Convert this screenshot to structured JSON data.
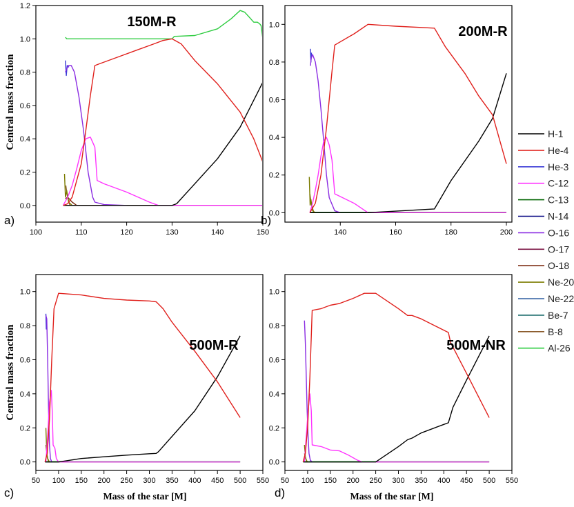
{
  "figure": {
    "y_axis_label": "Central mass fraction",
    "x_axis_label": "Mass of the star [M]"
  },
  "legend": [
    {
      "name": "H-1",
      "color": "#000000"
    },
    {
      "name": "He-4",
      "color": "#e0201c"
    },
    {
      "name": "He-3",
      "color": "#3b3bd6"
    },
    {
      "name": "C-12",
      "color": "#ff33ff"
    },
    {
      "name": "C-13",
      "color": "#006400"
    },
    {
      "name": "N-14",
      "color": "#000080"
    },
    {
      "name": "O-16",
      "color": "#8a2be2"
    },
    {
      "name": "O-17",
      "color": "#7a1040"
    },
    {
      "name": "O-18",
      "color": "#7b2a10"
    },
    {
      "name": "Ne-20",
      "color": "#7b7b00"
    },
    {
      "name": "Ne-22",
      "color": "#2f5fa0"
    },
    {
      "name": "Be-7",
      "color": "#1a6b6b"
    },
    {
      "name": "B-8",
      "color": "#8b5a2b"
    },
    {
      "name": "Al-26",
      "color": "#2ecc40"
    }
  ],
  "chart_data": [
    {
      "type": "line",
      "panel": "a)",
      "title": "150M-R",
      "xlim": [
        100,
        150
      ],
      "ylim": [
        -0.1,
        1.2
      ],
      "xticks": [
        "100",
        "110",
        "120",
        "130",
        "140",
        "150"
      ],
      "yticks": [
        "0.0",
        "0.2",
        "0.4",
        "0.6",
        "0.8",
        "1.0",
        "1.2"
      ],
      "series": [
        {
          "name": "H-1",
          "x": [
            106,
            130,
            131,
            136,
            140,
            145,
            150
          ],
          "y": [
            0,
            0,
            0.01,
            0.16,
            0.28,
            0.47,
            0.74
          ]
        },
        {
          "name": "He-4",
          "x": [
            106,
            107,
            108,
            110,
            111,
            112,
            113,
            114,
            118,
            122,
            126,
            128,
            130,
            132,
            135,
            140,
            145,
            148,
            150
          ],
          "y": [
            0,
            0.01,
            0.05,
            0.25,
            0.45,
            0.66,
            0.84,
            0.85,
            0.89,
            0.93,
            0.97,
            0.99,
            1.0,
            0.97,
            0.87,
            0.73,
            0.56,
            0.4,
            0.26
          ]
        },
        {
          "name": "O-16",
          "x": [
            106.5,
            106.8,
            107.2,
            107.8,
            108.5,
            109.5,
            110.5,
            111.5,
            112.5,
            113,
            115,
            120
          ],
          "y": [
            0.8,
            0.82,
            0.84,
            0.84,
            0.8,
            0.65,
            0.45,
            0.2,
            0.05,
            0.02,
            0.005,
            0
          ]
        },
        {
          "name": "He-3",
          "x": [
            106.5,
            106.7,
            106.9,
            107.3
          ],
          "y": [
            0.87,
            0.78,
            0.84,
            0.83
          ]
        },
        {
          "name": "C-12",
          "x": [
            106,
            107,
            108,
            109,
            110,
            111,
            112,
            113,
            113.5,
            115,
            120,
            125,
            127,
            150
          ],
          "y": [
            0,
            0.05,
            0.12,
            0.22,
            0.33,
            0.4,
            0.41,
            0.35,
            0.15,
            0.13,
            0.08,
            0.02,
            0,
            0
          ]
        },
        {
          "name": "Ne-20",
          "x": [
            106.3,
            106.5,
            106.8,
            107.2,
            108
          ],
          "y": [
            0.19,
            0.05,
            0.09,
            0.02,
            0
          ]
        },
        {
          "name": "B-8",
          "x": [
            106.6,
            106.9,
            107.5
          ],
          "y": [
            0.12,
            0.06,
            0
          ]
        },
        {
          "name": "O-18",
          "x": [
            106.5,
            107,
            108,
            109,
            150
          ],
          "y": [
            0.04,
            0.05,
            0.02,
            0,
            0
          ]
        },
        {
          "name": "C-13",
          "x": [
            106.5,
            150
          ],
          "y": [
            0,
            0
          ]
        },
        {
          "name": "Al-26",
          "x": [
            106.5,
            106.8,
            110,
            120,
            130,
            130.5,
            135,
            140,
            143,
            145,
            146,
            147,
            148,
            148.8,
            149.3,
            149.6,
            150
          ],
          "y": [
            1.01,
            1.0,
            1.0,
            1.0,
            1.0,
            1.015,
            1.02,
            1.06,
            1.12,
            1.17,
            1.16,
            1.13,
            1.1,
            1.1,
            1.09,
            1.08,
            1.0
          ]
        }
      ]
    },
    {
      "type": "line",
      "panel": "b)",
      "title": "200M-R",
      "xlim": [
        120,
        202
      ],
      "ylim": [
        -0.05,
        1.1
      ],
      "xticks": [
        "140",
        "160",
        "180",
        "200"
      ],
      "yticks": [
        "0.0",
        "0.2",
        "0.4",
        "0.6",
        "0.8",
        "1.0"
      ],
      "series": [
        {
          "name": "H-1",
          "x": [
            129,
            150,
            174,
            180,
            190,
            195,
            200
          ],
          "y": [
            0,
            0,
            0.02,
            0.17,
            0.38,
            0.5,
            0.74
          ]
        },
        {
          "name": "He-4",
          "x": [
            129,
            131,
            133,
            135,
            137,
            138,
            145,
            150,
            160,
            174,
            178,
            185,
            190,
            195,
            200
          ],
          "y": [
            0,
            0.05,
            0.2,
            0.45,
            0.75,
            0.89,
            0.95,
            1.0,
            0.99,
            0.98,
            0.88,
            0.74,
            0.62,
            0.52,
            0.26
          ]
        },
        {
          "name": "O-16",
          "x": [
            129.2,
            129.5,
            130,
            131,
            132,
            133,
            134,
            135,
            136,
            138,
            140
          ],
          "y": [
            0.78,
            0.82,
            0.84,
            0.8,
            0.7,
            0.55,
            0.38,
            0.2,
            0.08,
            0.01,
            0
          ]
        },
        {
          "name": "He-3",
          "x": [
            129.2,
            129.4,
            129.6
          ],
          "y": [
            0.87,
            0.8,
            0.85
          ]
        },
        {
          "name": "C-12",
          "x": [
            129,
            130,
            131,
            132,
            133,
            134,
            135,
            136,
            137,
            138,
            145,
            150,
            200
          ],
          "y": [
            0,
            0.05,
            0.12,
            0.2,
            0.3,
            0.38,
            0.4,
            0.36,
            0.28,
            0.1,
            0.05,
            0,
            0
          ]
        },
        {
          "name": "Ne-20",
          "x": [
            128.8,
            129.1,
            129.4,
            130,
            131
          ],
          "y": [
            0.19,
            0.04,
            0.07,
            0.01,
            0
          ]
        },
        {
          "name": "B-8",
          "x": [
            129,
            129.6,
            130.5
          ],
          "y": [
            0.1,
            0.04,
            0
          ]
        },
        {
          "name": "Al-26",
          "x": [
            129,
            200
          ],
          "y": [
            0,
            0
          ]
        },
        {
          "name": "C-13",
          "x": [
            129,
            200
          ],
          "y": [
            0.002,
            0.002
          ]
        }
      ]
    },
    {
      "type": "line",
      "panel": "c)",
      "title": "500M-R",
      "xlim": [
        50,
        550
      ],
      "ylim": [
        -0.05,
        1.1
      ],
      "xticks": [
        "50",
        "100",
        "150",
        "200",
        "250",
        "300",
        "350",
        "400",
        "450",
        "500",
        "550"
      ],
      "yticks": [
        "0.0",
        "0.2",
        "0.4",
        "0.6",
        "0.8",
        "1.0"
      ],
      "series": [
        {
          "name": "H-1",
          "x": [
            70,
            100,
            150,
            200,
            250,
            300,
            315,
            320,
            350,
            400,
            450,
            500
          ],
          "y": [
            0,
            0,
            0.02,
            0.03,
            0.04,
            0.048,
            0.05,
            0.06,
            0.15,
            0.3,
            0.5,
            0.74
          ]
        },
        {
          "name": "He-4",
          "x": [
            70,
            75,
            80,
            85,
            90,
            100,
            150,
            200,
            250,
            300,
            315,
            330,
            350,
            400,
            450,
            500
          ],
          "y": [
            0,
            0.05,
            0.25,
            0.6,
            0.9,
            0.99,
            0.98,
            0.96,
            0.95,
            0.945,
            0.94,
            0.9,
            0.82,
            0.65,
            0.47,
            0.26
          ]
        },
        {
          "name": "O-16",
          "x": [
            72,
            74,
            76,
            78,
            80,
            82,
            85
          ],
          "y": [
            0.86,
            0.84,
            0.6,
            0.3,
            0.1,
            0.02,
            0
          ]
        },
        {
          "name": "He-3",
          "x": [
            72,
            73,
            74
          ],
          "y": [
            0.87,
            0.78,
            0.83
          ]
        },
        {
          "name": "C-12",
          "x": [
            72,
            76,
            80,
            84,
            86,
            88,
            92,
            95,
            100,
            500
          ],
          "y": [
            0,
            0.15,
            0.35,
            0.42,
            0.3,
            0.1,
            0.08,
            0.02,
            0,
            0
          ]
        },
        {
          "name": "Ne-20",
          "x": [
            72,
            74,
            76,
            80
          ],
          "y": [
            0.2,
            0.05,
            0.02,
            0
          ]
        },
        {
          "name": "B-8",
          "x": [
            72,
            75,
            78
          ],
          "y": [
            0.1,
            0.03,
            0
          ]
        },
        {
          "name": "C-13",
          "x": [
            72,
            500
          ],
          "y": [
            0,
            0
          ]
        },
        {
          "name": "Al-26",
          "x": [
            72,
            500
          ],
          "y": [
            0.002,
            0.002
          ]
        }
      ]
    },
    {
      "type": "line",
      "panel": "d)",
      "title": "500M-NR",
      "xlim": [
        50,
        550
      ],
      "ylim": [
        -0.05,
        1.1
      ],
      "xticks": [
        "50",
        "100",
        "150",
        "200",
        "250",
        "300",
        "350",
        "400",
        "450",
        "500",
        "550"
      ],
      "yticks": [
        "0.0",
        "0.2",
        "0.4",
        "0.6",
        "0.8",
        "1.0"
      ],
      "series": [
        {
          "name": "H-1",
          "x": [
            90,
            250,
            300,
            320,
            330,
            350,
            400,
            410,
            420,
            450,
            500
          ],
          "y": [
            0,
            0,
            0.09,
            0.13,
            0.14,
            0.17,
            0.22,
            0.23,
            0.32,
            0.48,
            0.74
          ]
        },
        {
          "name": "He-4",
          "x": [
            90,
            95,
            100,
            105,
            110,
            130,
            150,
            170,
            200,
            225,
            240,
            250,
            300,
            320,
            330,
            350,
            380,
            410,
            415,
            450,
            500
          ],
          "y": [
            0,
            0.05,
            0.2,
            0.5,
            0.89,
            0.9,
            0.92,
            0.93,
            0.96,
            0.99,
            0.99,
            0.99,
            0.9,
            0.86,
            0.86,
            0.84,
            0.8,
            0.76,
            0.7,
            0.52,
            0.26
          ]
        },
        {
          "name": "O-16",
          "x": [
            93,
            95,
            97,
            99,
            101,
            103,
            106,
            110
          ],
          "y": [
            0.83,
            0.7,
            0.5,
            0.3,
            0.15,
            0.05,
            0.01,
            0
          ]
        },
        {
          "name": "C-12",
          "x": [
            93,
            97,
            101,
            105,
            108,
            110,
            130,
            150,
            170,
            190,
            210,
            220,
            500
          ],
          "y": [
            0,
            0.15,
            0.3,
            0.4,
            0.3,
            0.1,
            0.09,
            0.07,
            0.065,
            0.04,
            0.01,
            0,
            0
          ]
        },
        {
          "name": "Ne-20",
          "x": [
            93,
            95,
            97,
            100
          ],
          "y": [
            0.1,
            0.03,
            0.01,
            0
          ]
        },
        {
          "name": "B-8",
          "x": [
            93,
            96,
            99
          ],
          "y": [
            0.05,
            0.02,
            0
          ]
        },
        {
          "name": "C-13",
          "x": [
            93,
            500
          ],
          "y": [
            0,
            0
          ]
        },
        {
          "name": "Al-26",
          "x": [
            93,
            500
          ],
          "y": [
            0.002,
            0.002
          ]
        }
      ]
    }
  ]
}
